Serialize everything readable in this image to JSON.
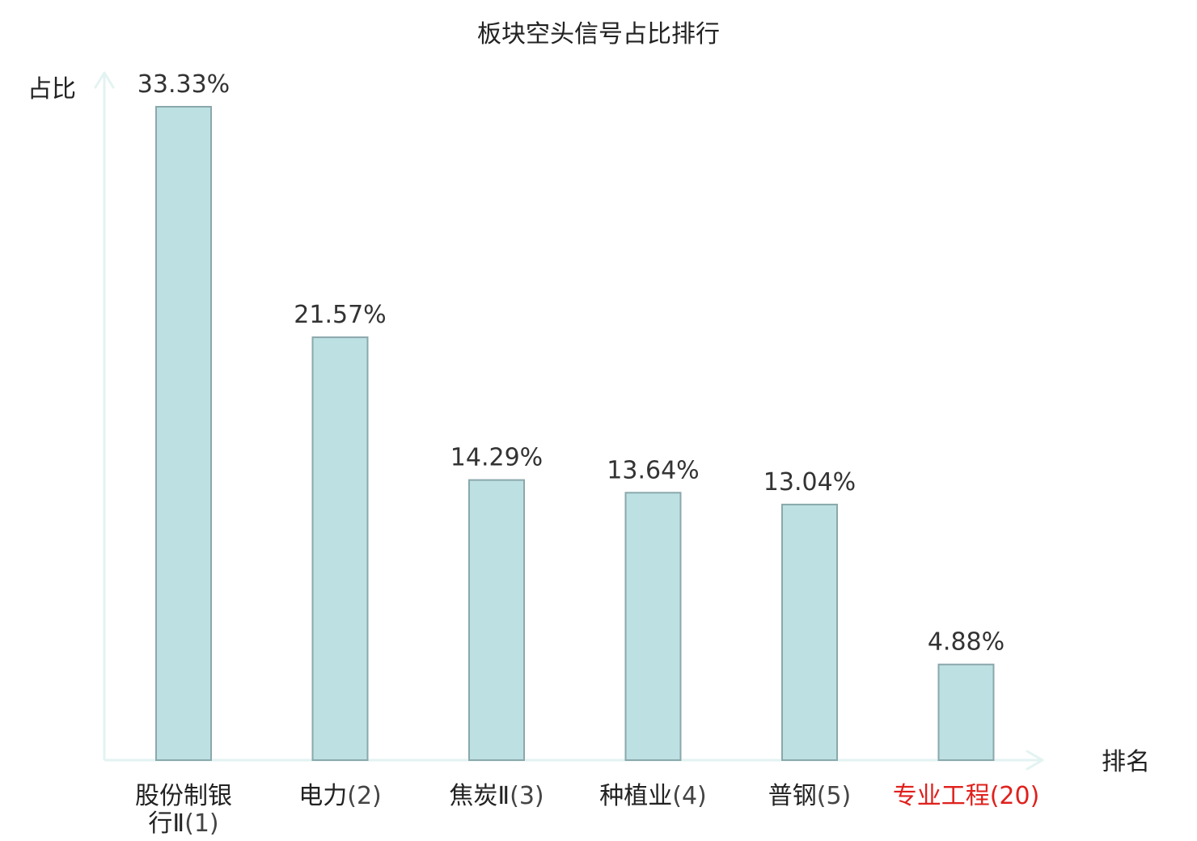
{
  "chart_data": {
    "type": "bar",
    "title": "板块空头信号占比排行",
    "ylabel": "占比",
    "xlabel": "排名",
    "value_suffix": "%",
    "ylim": [
      0,
      35
    ],
    "grid": false,
    "legend": "none",
    "categories": [
      {
        "lines": [
          "股份制银",
          "行Ⅱ"
        ],
        "rank": "(1)",
        "highlight": false
      },
      {
        "lines": [
          "电力"
        ],
        "rank": "(2)",
        "highlight": false
      },
      {
        "lines": [
          "焦炭Ⅱ"
        ],
        "rank": "(3)",
        "highlight": false
      },
      {
        "lines": [
          "种植业"
        ],
        "rank": "(4)",
        "highlight": false
      },
      {
        "lines": [
          "普钢"
        ],
        "rank": "(5)",
        "highlight": false
      },
      {
        "lines": [
          "专业工程"
        ],
        "rank": "(20)",
        "highlight": true
      }
    ],
    "values": [
      33.33,
      21.57,
      14.29,
      13.64,
      13.04,
      4.88
    ],
    "colors": {
      "bar_fill": "#bde0e3",
      "bar_stroke": "#8aa8ab",
      "axis": "#e3f3f1",
      "text": "#222222",
      "value_label": "#333333",
      "rank_text": "#444444",
      "highlight": "#e0201c"
    }
  }
}
